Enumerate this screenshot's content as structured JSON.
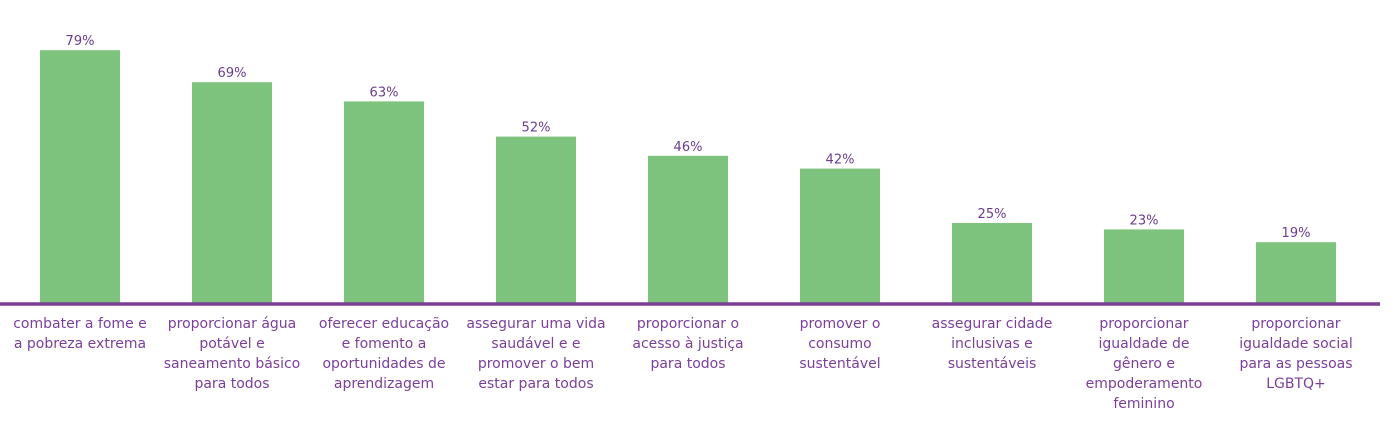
{
  "chart_data": {
    "type": "bar",
    "title": "",
    "xlabel": "",
    "ylabel": "",
    "ylim": [
      0,
      100
    ],
    "grid": false,
    "value_suffix": "%",
    "colors": {
      "bar": "#7dc37e",
      "axis": "#7a3f96",
      "label": "#7b3f9a",
      "value": "#6a3d8f"
    },
    "categories": [
      [
        "combater a fome e",
        "a pobreza extrema"
      ],
      [
        "proporcionar água",
        "potável e",
        "saneamento básico",
        "para todos"
      ],
      [
        "oferecer educação",
        "e fomento a",
        "oportunidades de",
        "aprendizagem"
      ],
      [
        "assegurar uma vida",
        "saudável e e",
        "promover o bem",
        "estar para todos"
      ],
      [
        "proporcionar o",
        "acesso à justiça",
        "para todos"
      ],
      [
        "promover o",
        "consumo",
        "sustentável"
      ],
      [
        "assegurar cidade",
        "inclusivas e",
        "sustentáveis"
      ],
      [
        "proporcionar",
        "igualdade de",
        "gênero e",
        "empoderamento",
        "feminino"
      ],
      [
        "proporcionar",
        "igualdade social",
        "para as pessoas",
        "LGBTQ+"
      ]
    ],
    "values": [
      79,
      69,
      63,
      52,
      46,
      42,
      25,
      23,
      19
    ],
    "value_labels": [
      "79%",
      "69%",
      "63%",
      "52%",
      "46%",
      "42%",
      "25%",
      "23%",
      "19%"
    ]
  }
}
